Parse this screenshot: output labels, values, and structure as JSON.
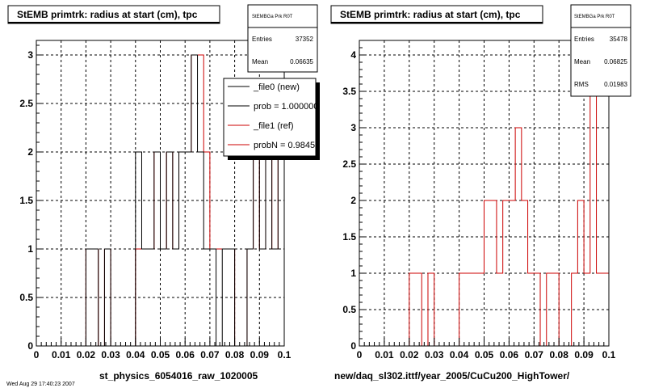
{
  "colors": {
    "new": "#000000",
    "ref": "#cc0000",
    "grid": "#000000",
    "legend_fill": "#ffffff"
  },
  "footer": {
    "left": "st_physics_6054016_raw_1020005",
    "right": "new/daq_sl302.ittf/year_2005/CuCu200_HighTower/",
    "corner": "Wed Aug 29 17:40:23 2007"
  },
  "chart_data": [
    {
      "type": "histogram",
      "title": "StEMB primtrk: radius at start (cm), tpc",
      "xlabel": "",
      "ylabel": "",
      "xlim": [
        0,
        0.1
      ],
      "ylim": [
        0,
        3.15
      ],
      "xticks": [
        "0",
        "0.01",
        "0.02",
        "0.03",
        "0.04",
        "0.05",
        "0.06",
        "0.07",
        "0.08",
        "0.09",
        "0.1"
      ],
      "yticks": [
        "0",
        "0.5",
        "1",
        "1.5",
        "2",
        "2.5",
        "3"
      ],
      "grid": true,
      "bin_edges_start": 0,
      "bin_width": 0.0025,
      "series": [
        {
          "name": "_file0 (new)",
          "values": [
            0,
            0,
            0,
            0,
            0,
            0,
            0,
            0,
            1,
            1,
            0,
            1,
            0,
            0,
            0,
            0,
            2,
            1,
            1,
            2,
            1,
            2,
            1,
            2,
            2,
            3,
            2,
            1,
            1,
            0,
            1,
            1,
            0,
            0,
            1,
            2,
            1,
            2,
            1,
            2
          ]
        },
        {
          "name": "_file1 (ref)",
          "values": [
            0,
            0,
            0,
            0,
            0,
            0,
            0,
            0,
            1,
            1,
            0,
            1,
            0,
            0,
            0,
            0,
            1,
            1,
            1,
            2,
            1,
            2,
            1,
            2,
            2,
            3,
            3,
            2,
            1,
            1,
            1,
            1,
            0,
            0,
            1,
            2,
            1,
            2,
            1,
            2
          ]
        }
      ],
      "stats": {
        "title": "StEMBGa Prk R0T",
        "entries_label": "Entries",
        "entries": "37352",
        "mean_label": "Mean",
        "mean": "0.06635"
      },
      "legend": {
        "placement": "top-right",
        "entries": [
          {
            "text": "_file0 (new)",
            "color": "#000000"
          },
          {
            "text": "prob = 1.000000",
            "color": "#000000"
          },
          {
            "text": "_file1 (ref)",
            "color": "#cc0000"
          },
          {
            "text": "probN = 0.984518",
            "color": "#cc0000"
          }
        ]
      }
    },
    {
      "type": "histogram",
      "title": "StEMB primtrk: radius at start (cm), tpc",
      "xlabel": "",
      "ylabel": "",
      "xlim": [
        0,
        0.1
      ],
      "ylim": [
        0,
        4.2
      ],
      "xticks": [
        "0",
        "0.01",
        "0.02",
        "0.03",
        "0.04",
        "0.05",
        "0.06",
        "0.07",
        "0.08",
        "0.09",
        "0.1"
      ],
      "yticks": [
        "0",
        "0.5",
        "1",
        "1.5",
        "2",
        "2.5",
        "3",
        "3.5",
        "4"
      ],
      "grid": true,
      "bin_edges_start": 0,
      "bin_width": 0.0025,
      "series": [
        {
          "name": "_file1 (ref)",
          "values": [
            0,
            0,
            0,
            0,
            0,
            0,
            0,
            0,
            1,
            1,
            0,
            1,
            0,
            0,
            0,
            0,
            1,
            1,
            1,
            1,
            2,
            2,
            1,
            2,
            2,
            3,
            2,
            1,
            1,
            0,
            1,
            1,
            0,
            0,
            1,
            2,
            1,
            4,
            1,
            1
          ]
        }
      ],
      "stats": {
        "title": "StEMBGa Prk R0T",
        "entries_label": "Entries",
        "entries": "35478",
        "mean_label": "Mean",
        "mean": "0.06825",
        "rms_label": "RMS",
        "rms": "0.01983"
      }
    }
  ]
}
